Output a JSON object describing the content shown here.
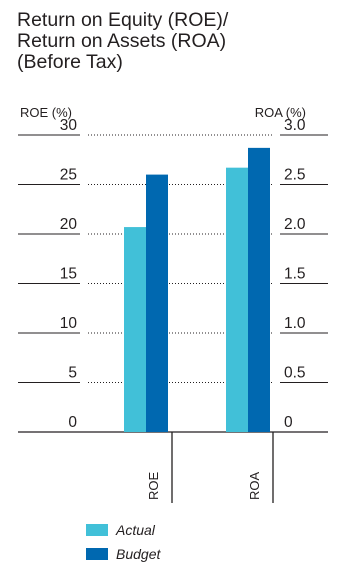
{
  "title_lines": [
    "Return on Equity (ROE)/",
    "Return on Assets (ROA)",
    "(Before Tax)"
  ],
  "chart_data": {
    "type": "bar",
    "title": "Return on Equity (ROE)/ Return on Assets (ROA) (Before Tax)",
    "categories": [
      "ROE",
      "ROA"
    ],
    "series": [
      {
        "name": "Actual",
        "values": [
          20.7,
          2.67
        ],
        "color": "#41c0d8"
      },
      {
        "name": "Budget",
        "values": [
          26.0,
          2.87
        ],
        "color": "#0068b0"
      }
    ],
    "y_left": {
      "label": "ROE (%)",
      "ticks": [
        "0",
        "5",
        "10",
        "15",
        "20",
        "25",
        "30"
      ],
      "ylim": [
        0,
        30
      ]
    },
    "y_right": {
      "label": "ROA (%)",
      "ticks": [
        "0",
        "0.5",
        "1.0",
        "1.5",
        "2.0",
        "2.5",
        "3.0"
      ],
      "ylim": [
        0,
        3.0
      ]
    },
    "grid": true,
    "legend": "bottom-left"
  }
}
